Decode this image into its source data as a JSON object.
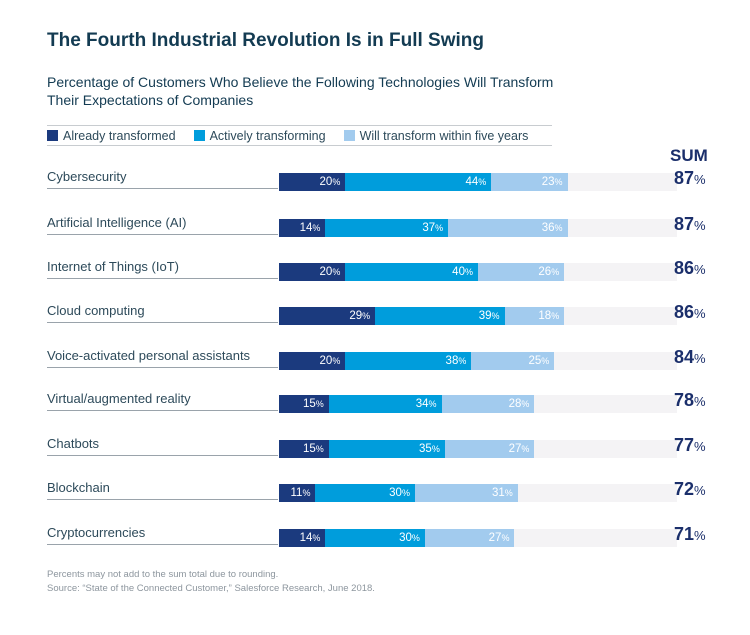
{
  "chart_data": {
    "type": "bar",
    "stacked": true,
    "orientation": "horizontal",
    "title": "The Fourth Industrial Revolution Is in Full Swing",
    "subtitle": "Percentage of Customers Who Believe the Following Technologies Will Transform Their Expectations of Companies",
    "categories": [
      "Cybersecurity",
      "Artificial Intelligence (AI)",
      "Internet of Things (IoT)",
      "Cloud computing",
      "Voice-activated personal assistants",
      "Virtual/augmented reality",
      "Chatbots",
      "Blockchain",
      "Cryptocurrencies"
    ],
    "series": [
      {
        "name": "Already transformed",
        "color": "#1b3a7e",
        "values": [
          20,
          14,
          20,
          29,
          20,
          15,
          15,
          11,
          14
        ]
      },
      {
        "name": "Actively transforming",
        "color": "#009ddc",
        "values": [
          44,
          37,
          40,
          39,
          38,
          34,
          35,
          30,
          30
        ]
      },
      {
        "name": "Will transform within five years",
        "color": "#a2cbee",
        "values": [
          23,
          36,
          26,
          18,
          25,
          28,
          27,
          31,
          27
        ]
      }
    ],
    "sum_header": "SUM",
    "sums": [
      87,
      87,
      86,
      86,
      84,
      78,
      77,
      72,
      71
    ],
    "unit": "%",
    "legend_position": "top",
    "grid": false,
    "track_color": "#f4f3f5"
  },
  "footnotes": [
    "Percents may not add to the sum total due to rounding.",
    "Source: “State of the Connected Customer,” Salesforce Research, June 2018."
  ]
}
